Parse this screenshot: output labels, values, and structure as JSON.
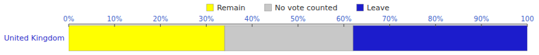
{
  "chart_data": {
    "type": "bar",
    "orientation": "horizontal",
    "stacked": true,
    "categories": [
      "United Kingdom"
    ],
    "series": [
      {
        "name": "Remain",
        "color": "#FFFF00",
        "values": [
          34
        ]
      },
      {
        "name": "No vote counted",
        "color": "#C8C8C8",
        "values": [
          28
        ]
      },
      {
        "name": "Leave",
        "color": "#1C1CCC",
        "values": [
          38
        ]
      }
    ],
    "xlim": [
      0,
      100
    ],
    "xticks": [
      {
        "value": 0,
        "label": "0%"
      },
      {
        "value": 10,
        "label": "10%"
      },
      {
        "value": 20,
        "label": "20%"
      },
      {
        "value": 30,
        "label": "30%"
      },
      {
        "value": 40,
        "label": "40%"
      },
      {
        "value": 50,
        "label": "50%"
      },
      {
        "value": 60,
        "label": "60%"
      },
      {
        "value": 70,
        "label": "70%"
      },
      {
        "value": 80,
        "label": "80%"
      },
      {
        "value": 90,
        "label": "90%"
      },
      100
    ],
    "legend": "top"
  }
}
